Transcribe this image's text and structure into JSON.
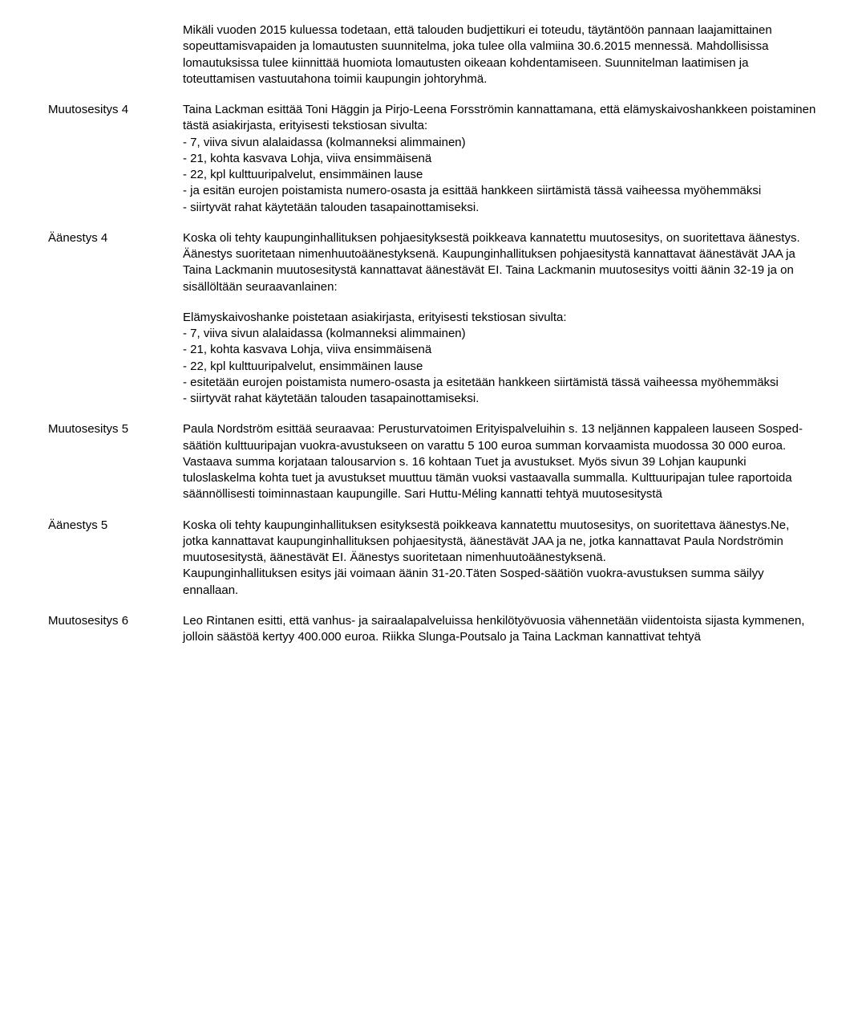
{
  "intro": {
    "p1": "Mikäli vuoden 2015 kuluessa todetaan, että talouden budjettikuri ei toteudu, täytäntöön pannaan laajamittainen sopeuttamisvapaiden ja lomautusten suunnitelma, joka tulee olla valmiina 30.6.2015 mennessä. Mahdollisissa lomautuksissa tulee kiinnittää huomiota lomautusten oikeaan kohdentamiseen. Suunnitelman laatimisen ja toteuttamisen vastuutahona toimii kaupungin johtoryhmä."
  },
  "m4": {
    "label": "Muutosesitys 4",
    "p1": "Taina Lackman esittää Toni Häggin ja Pirjo-Leena Forsströmin kannattamana, että elämyskaivoshankkeen poistaminen tästä asiakirjasta, erityisesti tekstiosan sivulta:",
    "b1": "- 7, viiva sivun alalaidassa (kolmanneksi alimmainen)",
    "b2": "- 21, kohta kasvava Lohja, viiva ensimmäisenä",
    "b3": "- 22, kpl kulttuuripalvelut, ensimmäinen lause",
    "b4": "- ja esitän eurojen poistamista numero-osasta ja esittää hankkeen siirtämistä tässä vaiheessa myöhemmäksi",
    "b5": "- siirtyvät rahat käytetään talouden tasapainottamiseksi."
  },
  "a4": {
    "label": "Äänestys 4",
    "p1": "Koska oli tehty kaupunginhallituksen pohjaesityksestä poikkeava kannatettu muutosesitys, on suoritettava äänestys. Äänestys suoritetaan nimenhuutoäänestyksenä. Kaupunginhallituksen pohjaesitystä kannattavat äänestävät JAA ja Taina Lackmanin muutosesitystä kannattavat äänestävät EI. Taina Lackmanin muutosesitys voitti äänin 32-19 ja on sisällöltään seuraavanlainen:",
    "p2": "Elämyskaivoshanke poistetaan asiakirjasta, erityisesti tekstiosan sivulta:",
    "b1": "- 7, viiva sivun alalaidassa (kolmanneksi alimmainen)",
    "b2": "- 21, kohta kasvava Lohja, viiva ensimmäisenä",
    "b3": "- 22, kpl kulttuuripalvelut, ensimmäinen lause",
    "b4": "- esitetään eurojen poistamista numero-osasta ja esitetään hankkeen siirtämistä tässä vaiheessa myöhemmäksi",
    "b5": "- siirtyvät rahat käytetään talouden tasapainottamiseksi."
  },
  "m5": {
    "label": "Muutosesitys 5",
    "p1": "Paula Nordström esittää seuraavaa: Perusturvatoimen Erityispalveluihin s. 13 neljännen kappaleen lauseen Sosped-säätiön kulttuuripajan vuokra-avustukseen on varattu 5 100 euroa summan korvaamista muodossa 30 000 euroa. Vastaava summa korjataan talousarvion s. 16 kohtaan Tuet ja avustukset. Myös sivun 39 Lohjan kaupunki tuloslaskelma kohta tuet ja avustukset muuttuu tämän vuoksi vastaavalla summalla. Kulttuuripajan tulee raportoida säännöllisesti toiminnastaan kaupungille. Sari Huttu-Méling kannatti tehtyä muutosesitystä"
  },
  "a5": {
    "label": "Äänestys 5",
    "p1": "Koska oli tehty kaupunginhallituksen esityksestä poikkeava kannatettu muutosesitys, on suoritettava äänestys.Ne, jotka kannattavat kaupunginhallituksen pohjaesitystä, äänestävät JAA ja ne, jotka kannattavat Paula Nordströmin muutosesitystä, äänestävät EI. Äänestys suoritetaan nimenhuutoäänestyksenä.",
    "p2": "Kaupunginhallituksen esitys jäi voimaan äänin 31-20.Täten Sosped-säätiön vuokra-avustuksen summa säilyy ennallaan."
  },
  "m6": {
    "label": "Muutosesitys 6",
    "p1": "Leo Rintanen esitti, että  vanhus- ja sairaalapalveluissa henkilötyövuosia vähennetään viidentoista sijasta kymmenen, jolloin säästöä kertyy 400.000 euroa. Riikka Slunga-Poutsalo ja Taina Lackman kannattivat tehtyä"
  }
}
